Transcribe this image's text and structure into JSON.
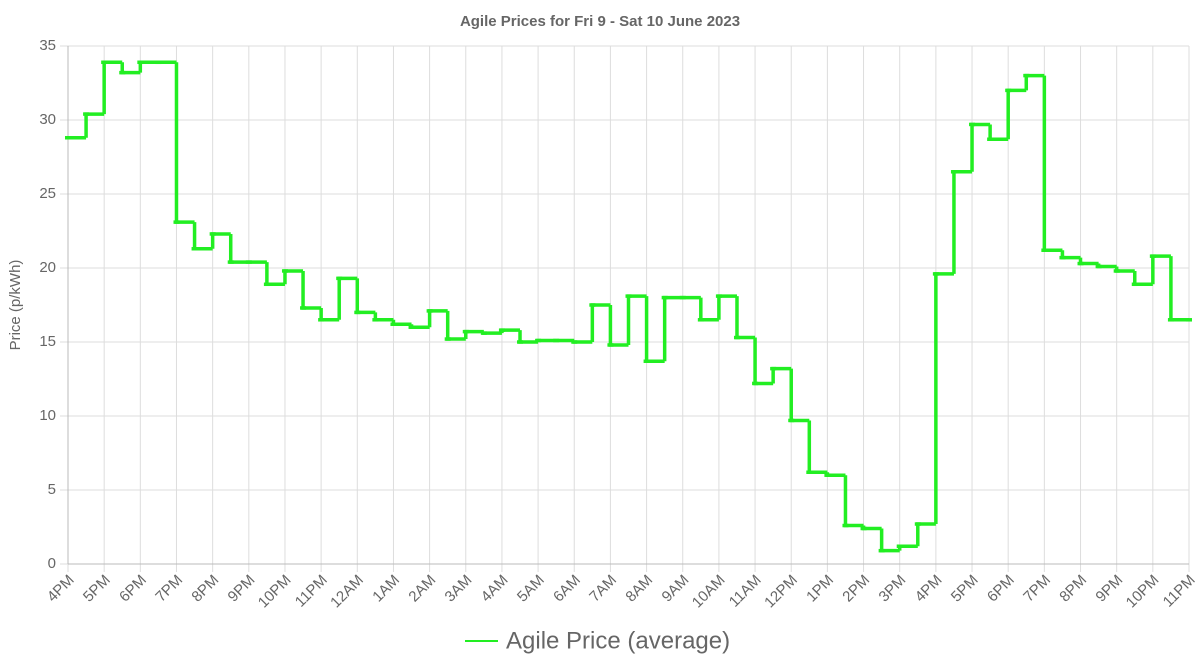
{
  "chart_data": {
    "type": "step",
    "title": "Agile Prices for Fri 9 - Sat 10 June 2023",
    "y_label": "Price (p/kWh)",
    "categories": [
      "4PM",
      null,
      "5PM",
      null,
      "6PM",
      null,
      "7PM",
      null,
      "8PM",
      null,
      "9PM",
      null,
      "10PM",
      null,
      "11PM",
      null,
      "12AM",
      null,
      "1AM",
      null,
      "2AM",
      null,
      "3AM",
      null,
      "4AM",
      null,
      "5AM",
      null,
      "6AM",
      null,
      "7AM",
      null,
      "8AM",
      null,
      "9AM",
      null,
      "10AM",
      null,
      "11AM",
      null,
      "12PM",
      null,
      "1PM",
      null,
      "2PM",
      null,
      "3PM",
      null,
      "4PM",
      null,
      "5PM",
      null,
      "6PM",
      null,
      "7PM",
      null,
      "8PM",
      null,
      "9PM",
      null,
      "10PM",
      null,
      "11PM"
    ],
    "series": [
      {
        "name": "Agile Price (average)",
        "color": "#22ee22",
        "values": [
          28.8,
          30.4,
          33.9,
          33.2,
          33.9,
          33.9,
          23.1,
          21.3,
          22.3,
          20.4,
          20.4,
          18.9,
          19.8,
          17.3,
          16.5,
          19.3,
          17.0,
          16.5,
          16.2,
          16.0,
          17.1,
          15.2,
          15.7,
          15.6,
          15.8,
          15.0,
          15.1,
          15.1,
          15.0,
          17.5,
          14.8,
          18.1,
          13.7,
          18.0,
          18.0,
          16.5,
          18.1,
          15.3,
          12.2,
          13.2,
          9.7,
          6.2,
          6.0,
          2.6,
          2.4,
          0.9,
          1.2,
          2.7,
          19.6,
          26.5,
          29.7,
          28.7,
          32.0,
          33.0,
          21.2,
          20.7,
          20.3,
          20.1,
          19.8,
          18.9,
          20.8,
          16.5,
          16.5
        ]
      }
    ],
    "ylim": [
      0,
      35
    ],
    "yticks": [
      0,
      5,
      10,
      15,
      20,
      25,
      30,
      35
    ],
    "grid": true,
    "legend": "bottom"
  }
}
